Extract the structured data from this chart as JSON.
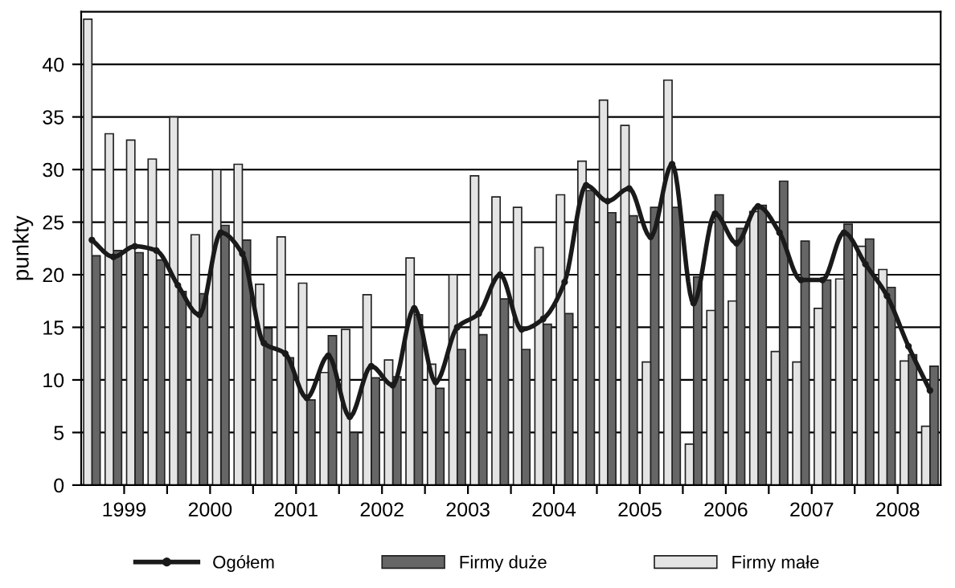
{
  "chart_data": {
    "type": "bar",
    "ylabel": "punkty",
    "x": [
      1999.125,
      1999.375,
      1999.625,
      1999.875,
      2000.125,
      2000.375,
      2000.625,
      2000.875,
      2001.125,
      2001.375,
      2001.625,
      2001.875,
      2002.125,
      2002.375,
      2002.625,
      2002.875,
      2003.125,
      2003.375,
      2003.625,
      2003.875,
      2004.125,
      2004.375,
      2004.625,
      2004.875,
      2005.125,
      2005.375,
      2005.625,
      2005.875,
      2006.125,
      2006.375,
      2006.625,
      2006.875,
      2007.125,
      2007.375,
      2007.625,
      2007.875,
      2008.125,
      2008.375,
      2008.625,
      2008.875
    ],
    "series": [
      {
        "name": "Ogółem",
        "type": "line",
        "color": "#1a1a1a",
        "marker": "circle",
        "values": [
          23.3,
          21.7,
          22.7,
          22.3,
          19.0,
          16.2,
          24.0,
          22.0,
          13.5,
          12.5,
          8.3,
          12.3,
          6.5,
          11.3,
          9.5,
          16.8,
          9.8,
          15.0,
          16.3,
          20.0,
          14.8,
          15.8,
          19.3,
          28.5,
          27.0,
          28.2,
          23.6,
          30.5,
          17.3,
          25.8,
          23.0,
          26.5,
          24.0,
          19.5,
          19.5,
          24.0,
          21.0,
          18.0,
          13.2,
          9.0
        ]
      },
      {
        "name": "Firmy duże",
        "color": "#666666",
        "values": [
          21.8,
          22.3,
          22.1,
          21.4,
          18.4,
          18.2,
          24.7,
          23.3,
          14.9,
          12.1,
          8.1,
          14.2,
          5.0,
          10.2,
          10.3,
          16.2,
          9.2,
          12.9,
          14.3,
          17.7,
          12.9,
          15.3,
          16.3,
          28.0,
          25.9,
          25.6,
          26.4,
          26.4,
          19.8,
          27.6,
          24.4,
          26.6,
          28.9,
          23.2,
          19.5,
          24.8,
          23.4,
          18.8,
          12.4,
          11.3
        ]
      },
      {
        "name": "Firmy małe",
        "color": "#e4e4e4",
        "values": [
          44.3,
          33.4,
          32.8,
          31.0,
          35.0,
          23.8,
          30.0,
          30.5,
          19.1,
          23.6,
          19.2,
          10.7,
          14.8,
          18.1,
          11.9,
          21.6,
          11.5,
          20.0,
          29.4,
          27.4,
          26.4,
          22.6,
          27.6,
          30.8,
          36.6,
          34.2,
          11.7,
          38.5,
          3.9,
          16.6,
          17.5,
          26.0,
          12.7,
          11.7,
          16.8,
          19.6,
          22.7,
          20.5,
          11.8,
          5.6
        ]
      }
    ],
    "xlim": [
      1999,
      2009
    ],
    "xticks": [
      {
        "value": 1999.5,
        "label": "1999"
      },
      {
        "value": 2000,
        "label": null
      },
      {
        "value": 2000.5,
        "label": "2000"
      },
      {
        "value": 2001,
        "label": null
      },
      {
        "value": 2001.5,
        "label": "2001"
      },
      {
        "value": 2002,
        "label": null
      },
      {
        "value": 2002.5,
        "label": "2002"
      },
      {
        "value": 2003,
        "label": null
      },
      {
        "value": 2003.5,
        "label": "2003"
      },
      {
        "value": 2004,
        "label": null
      },
      {
        "value": 2004.5,
        "label": "2004"
      },
      {
        "value": 2005,
        "label": null
      },
      {
        "value": 2005.5,
        "label": "2005"
      },
      {
        "value": 2006,
        "label": null
      },
      {
        "value": 2006.5,
        "label": "2006"
      },
      {
        "value": 2007,
        "label": null
      },
      {
        "value": 2007.5,
        "label": "2007"
      },
      {
        "value": 2008,
        "label": null
      },
      {
        "value": 2008.5,
        "label": "2008"
      }
    ],
    "ylim": [
      0,
      45
    ],
    "yticks": [
      0,
      5,
      10,
      15,
      20,
      25,
      30,
      35,
      40
    ],
    "grid": "y",
    "legend": "bottom"
  }
}
